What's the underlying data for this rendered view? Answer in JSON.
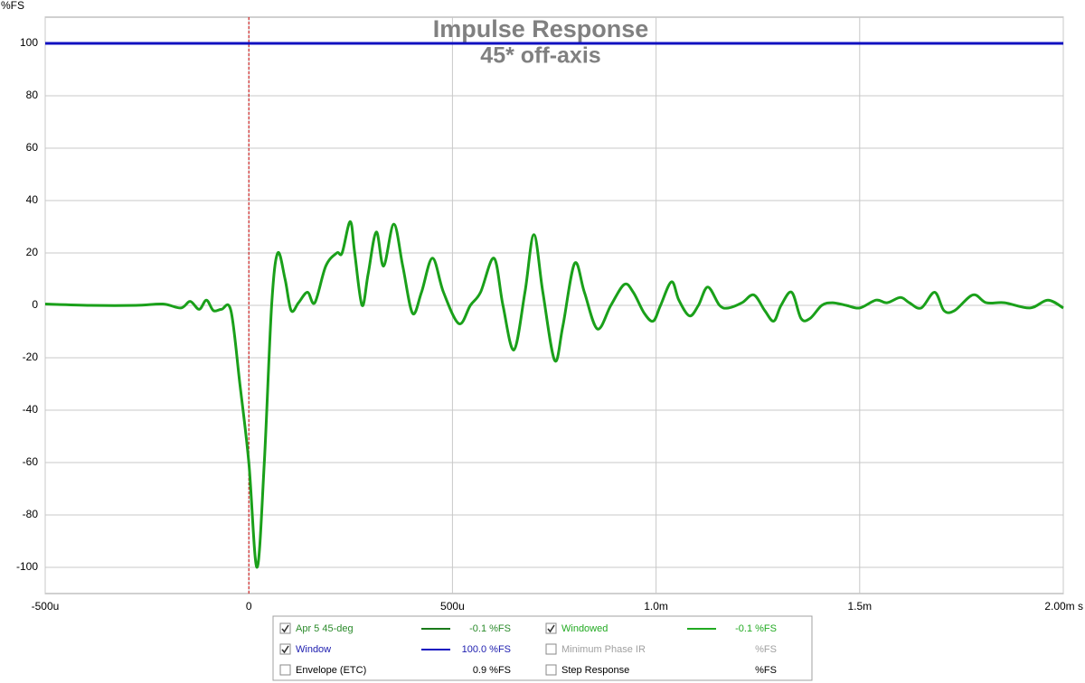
{
  "chart_data": {
    "type": "line",
    "title": "Impulse Response",
    "subtitle": "45* off-axis",
    "y_label": "%FS",
    "xlim": [
      -0.0005,
      0.002
    ],
    "xticks": [
      {
        "value": -0.0005,
        "label": "-500u"
      },
      0,
      {
        "value": 0.0005,
        "label": "500u"
      },
      {
        "value": 0.001,
        "label": "1.0m"
      },
      {
        "value": 0.0015,
        "label": "1.5m"
      },
      {
        "value": 0.002,
        "label": "2.00m s"
      }
    ],
    "ylim": [
      -110,
      110
    ],
    "yticks": [
      -100,
      -80,
      -60,
      -40,
      -20,
      0,
      20,
      40,
      60,
      80,
      100
    ],
    "grid": true,
    "reference_line": {
      "x": 0,
      "color": "#cc0000"
    },
    "series": [
      {
        "name": "Apr 5 45-deg",
        "color": "#1aa01a",
        "text_color": "#2a8a2a",
        "line_color": "#1a7a1a",
        "readout": "-0.1 %FS",
        "checked": true,
        "x": [
          -0.0005,
          -0.000389,
          -0.000278,
          -0.000211,
          -0.000167,
          -0.000144,
          -0.000122,
          -0.000104,
          -8.7e-05,
          -6.7e-05,
          -4.4e-05,
          -2.2e-05,
          0,
          2e-05,
          3.8e-05,
          5.6e-05,
          7.1e-05,
          8.9e-05,
          0.000104,
          0.000122,
          0.000144,
          0.000162,
          0.000189,
          0.000216,
          0.000229,
          0.000249,
          0.00026,
          0.000278,
          0.000293,
          0.000313,
          0.000331,
          0.000356,
          0.000378,
          0.000402,
          0.000424,
          0.000451,
          0.000478,
          0.000516,
          0.000544,
          0.000569,
          0.000602,
          0.000624,
          0.000651,
          0.000678,
          0.0007,
          0.000722,
          0.000751,
          0.000771,
          0.0008,
          0.000824,
          0.000856,
          0.000889,
          0.000922,
          0.000944,
          0.000971,
          0.000993,
          0.001011,
          0.001038,
          0.001056,
          0.001082,
          0.001104,
          0.001127,
          0.001156,
          0.001178,
          0.001211,
          0.00124,
          0.001267,
          0.001289,
          0.001307,
          0.001333,
          0.001356,
          0.001378,
          0.001407,
          0.001433,
          0.001467,
          0.0015,
          0.00154,
          0.001567,
          0.0016,
          0.001622,
          0.001651,
          0.001684,
          0.001707,
          0.001733,
          0.001778,
          0.001811,
          0.001856,
          0.001918,
          0.001962,
          0.002
        ],
        "values": [
          0.5,
          0,
          0,
          0.5,
          -1,
          1.5,
          -1.5,
          2,
          -2,
          -1.5,
          -2,
          -30,
          -60,
          -100,
          -60,
          0,
          20,
          10,
          -2,
          1,
          5,
          1,
          15,
          20,
          20,
          32,
          20,
          0,
          12,
          28,
          15,
          31,
          15,
          -3,
          5,
          18,
          5,
          -7,
          0,
          5,
          18,
          0,
          -17,
          5,
          27,
          5,
          -21,
          -8,
          16,
          5,
          -9,
          0,
          8,
          5,
          -3,
          -6,
          0,
          9,
          2,
          -4,
          0,
          7,
          0,
          -1,
          1,
          4,
          -2,
          -6,
          0,
          5,
          -5,
          -5,
          0,
          1,
          0,
          -1,
          2,
          1,
          3,
          1,
          -1,
          5,
          -2,
          -2,
          4,
          1,
          1,
          -1,
          2,
          -1
        ]
      },
      {
        "name": "Window",
        "color": "#1010c0",
        "text_color": "#2020b0",
        "line_color": "#1010c0",
        "readout": "100.0 %FS",
        "checked": true,
        "x": [
          -0.0005,
          0.002
        ],
        "values": [
          100,
          100
        ]
      }
    ],
    "other_traces": [
      {
        "name": "Envelope (ETC)",
        "text_color": "#000000",
        "line_color": null,
        "readout": "0.9 %FS",
        "checked": false
      },
      {
        "name": "Windowed",
        "text_color": "#22aa22",
        "line_color": "#22aa22",
        "readout": "-0.1 %FS",
        "checked": true
      },
      {
        "name": "Minimum Phase IR",
        "text_color": "#a0a0a0",
        "line_color": null,
        "readout": "%FS",
        "checked": false
      },
      {
        "name": "Step Response",
        "text_color": "#000000",
        "line_color": null,
        "readout": "%FS",
        "checked": false
      }
    ]
  }
}
